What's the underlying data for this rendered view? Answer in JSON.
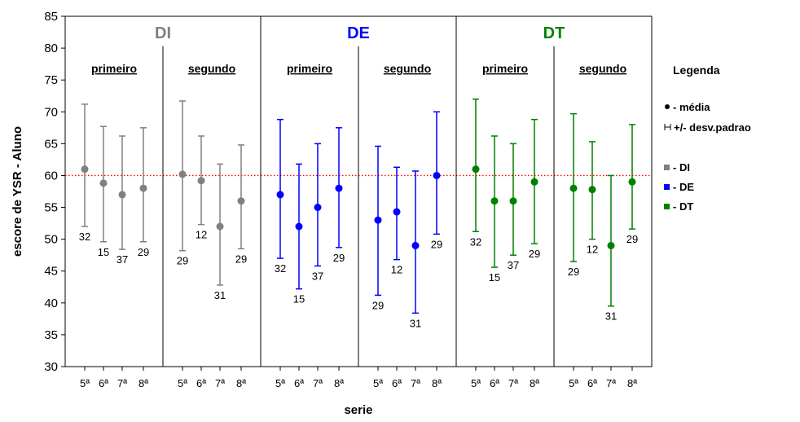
{
  "chart_data": {
    "type": "scatter",
    "ylabel": "escore de YSR - Aluno",
    "xlabel": "serie",
    "ylim": [
      30,
      85
    ],
    "yticks": [
      30,
      35,
      40,
      45,
      50,
      55,
      60,
      65,
      70,
      75,
      80,
      85
    ],
    "reference_line": 60,
    "categories": [
      "5ª",
      "6ª",
      "7ª",
      "8ª"
    ],
    "groups": [
      {
        "name": "DI",
        "color": "#808080",
        "subgroups": [
          {
            "name": "primeiro",
            "mean": [
              61,
              58.8,
              57,
              58
            ],
            "upper": [
              71.2,
              67.7,
              66.2,
              67.5
            ],
            "lower": [
              52,
              49.6,
              48.4,
              49.6
            ],
            "n": [
              32,
              15,
              37,
              29
            ]
          },
          {
            "name": "segundo",
            "mean": [
              60.2,
              59.2,
              52,
              56
            ],
            "upper": [
              71.7,
              66.2,
              61.8,
              64.8
            ],
            "lower": [
              48.2,
              52.3,
              42.8,
              48.5
            ],
            "n": [
              29,
              12,
              31,
              29
            ]
          }
        ]
      },
      {
        "name": "DE",
        "color": "#0000ff",
        "subgroups": [
          {
            "name": "primeiro",
            "mean": [
              57,
              52,
              55,
              58
            ],
            "upper": [
              68.8,
              61.8,
              65,
              67.5
            ],
            "lower": [
              47,
              42.2,
              45.8,
              48.7
            ],
            "n": [
              32,
              15,
              37,
              29
            ]
          },
          {
            "name": "segundo",
            "mean": [
              53,
              54.3,
              49,
              60
            ],
            "upper": [
              64.6,
              61.3,
              60.7,
              70
            ],
            "lower": [
              41.2,
              46.8,
              38.4,
              50.8
            ],
            "n": [
              29,
              12,
              31,
              29
            ]
          }
        ]
      },
      {
        "name": "DT",
        "color": "#008000",
        "subgroups": [
          {
            "name": "primeiro",
            "mean": [
              61,
              56,
              56,
              59
            ],
            "upper": [
              72,
              66.2,
              65,
              68.8
            ],
            "lower": [
              51.2,
              45.6,
              47.5,
              49.3
            ],
            "n": [
              32,
              15,
              37,
              29
            ]
          },
          {
            "name": "segundo",
            "mean": [
              58,
              57.8,
              49,
              59
            ],
            "upper": [
              69.7,
              65.3,
              60,
              68
            ],
            "lower": [
              46.5,
              50,
              39.5,
              51.6
            ],
            "n": [
              29,
              12,
              31,
              29
            ]
          }
        ]
      }
    ],
    "legend": {
      "title": "Legenda",
      "mean_label": "- média",
      "sd_label": "+/- desv.padrao",
      "group_labels": [
        "- DI",
        "- DE",
        "- DT"
      ]
    }
  }
}
